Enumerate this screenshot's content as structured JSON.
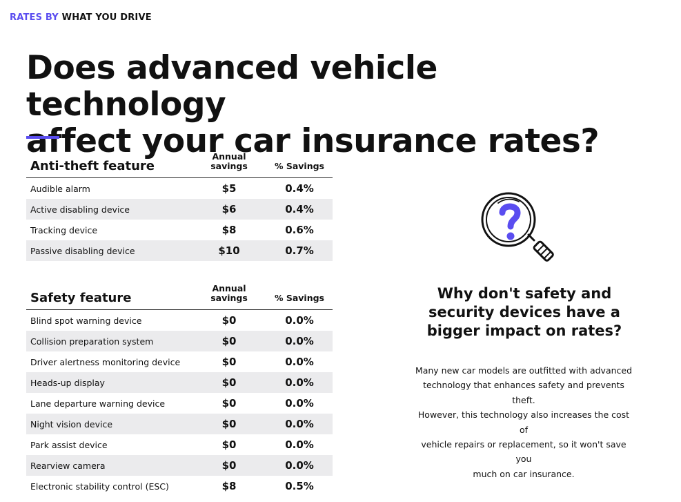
{
  "eyebrow": {
    "accent": "RATES BY",
    "rest": "WHAT YOU DRIVE"
  },
  "headline": {
    "line1": "Does advanced vehicle technology",
    "line2": "affect your car insurance rates?"
  },
  "colors": {
    "accent": "#5a4df0",
    "row_shade": "#ebebed"
  },
  "columns": {
    "annual_line1": "Annual",
    "annual_line2": "savings",
    "percent": "% Savings"
  },
  "anti_theft": {
    "title": "Anti-theft feature",
    "rows": [
      {
        "name": "Audible alarm",
        "annual": "$5",
        "percent": "0.4%"
      },
      {
        "name": "Active disabling device",
        "annual": "$6",
        "percent": "0.4%"
      },
      {
        "name": "Tracking device",
        "annual": "$8",
        "percent": "0.6%"
      },
      {
        "name": "Passive disabling device",
        "annual": "$10",
        "percent": "0.7%"
      }
    ]
  },
  "safety": {
    "title": "Safety feature",
    "rows": [
      {
        "name": "Blind spot warning device",
        "annual": "$0",
        "percent": "0.0%"
      },
      {
        "name": "Collision preparation system",
        "annual": "$0",
        "percent": "0.0%"
      },
      {
        "name": "Driver alertness monitoring device",
        "annual": "$0",
        "percent": "0.0%"
      },
      {
        "name": "Heads-up display",
        "annual": "$0",
        "percent": "0.0%"
      },
      {
        "name": "Lane departure warning device",
        "annual": "$0",
        "percent": "0.0%"
      },
      {
        "name": "Night vision device",
        "annual": "$0",
        "percent": "0.0%"
      },
      {
        "name": "Park assist device",
        "annual": "$0",
        "percent": "0.0%"
      },
      {
        "name": "Rearview camera",
        "annual": "$0",
        "percent": "0.0%"
      },
      {
        "name": "Electronic stability control (ESC)",
        "annual": "$8",
        "percent": "0.5%"
      }
    ]
  },
  "sidebar": {
    "icon": "magnifier-question-icon",
    "title_lines": [
      "Why don't safety and",
      "security devices have a",
      "bigger impact on rates?"
    ],
    "body_lines": [
      "Many new car models are outfitted with advanced",
      "technology that enhances safety and prevents theft.",
      "However, this technology also increases the cost of",
      "vehicle repairs or replacement, so it won't save you",
      "much on car insurance."
    ]
  }
}
